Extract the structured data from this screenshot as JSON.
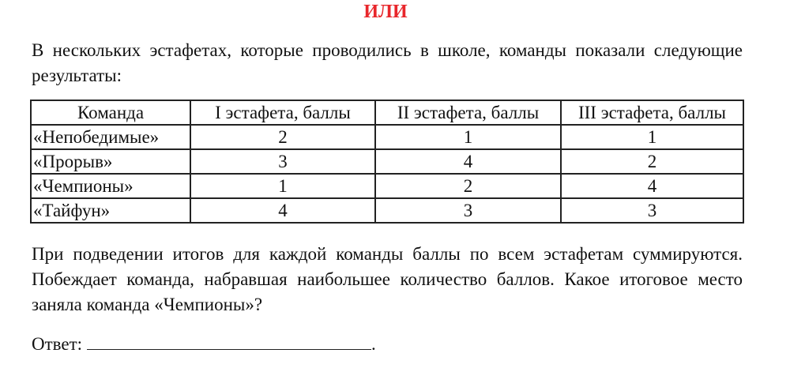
{
  "title": "ИЛИ",
  "intro": "В нескольких эстафетах, которые проводились в школе, команды показали следующие результаты:",
  "table": {
    "headers": [
      "Команда",
      "I эстафета, баллы",
      "II эстафета, баллы",
      "III эстафета, баллы"
    ],
    "rows": [
      [
        "«Непобедимые»",
        "2",
        "1",
        "1"
      ],
      [
        "«Прорыв»",
        "3",
        "4",
        "2"
      ],
      [
        "«Чемпионы»",
        "1",
        "2",
        "4"
      ],
      [
        "«Тайфун»",
        "4",
        "3",
        "3"
      ]
    ]
  },
  "question": "При подведении итогов для каждой команды баллы по всем эстафетам суммируются. Побеждает команда, набравшая наибольшее количество баллов. Какое итоговое место заняла команда «Чемпионы»?",
  "answer_label": "Ответ:",
  "answer_end": "."
}
